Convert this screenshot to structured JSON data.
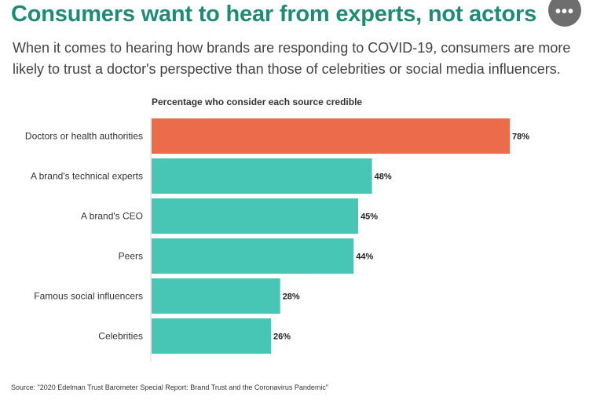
{
  "header": {
    "title": "Consumers want to hear from experts, not actors",
    "subtitle": "When it comes to hearing how brands are responding to COVID-19, consumers are more likely to trust a doctor's perspective than those of celebrities or social media influencers.",
    "more_button": "•••"
  },
  "colors": {
    "title": "#1f8a76",
    "highlight_bar": "#ec6b4a",
    "bar": "#47c6b6"
  },
  "chart_data": {
    "type": "bar",
    "orientation": "horizontal",
    "title": "Percentage who consider each source credible",
    "categories": [
      "Doctors or health authorities",
      "A brand's technical experts",
      "A brand's CEO",
      "Peers",
      "Famous social influencers",
      "Celebrities"
    ],
    "values": [
      78,
      48,
      45,
      44,
      28,
      26
    ],
    "labels": [
      "78%",
      "48%",
      "45%",
      "44%",
      "28%",
      "26%"
    ],
    "highlight_index": 0,
    "xlim": [
      0,
      100
    ],
    "grid": false
  },
  "footer": {
    "source": "Source: \"2020 Edelman Trust Barometer Special Report: Brand Trust and the Coronavirus Pandemic\""
  }
}
